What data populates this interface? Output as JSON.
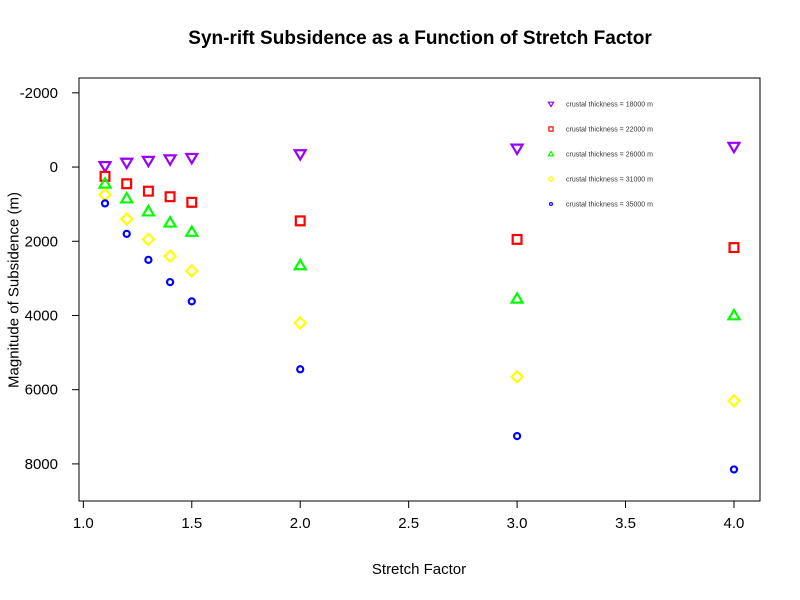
{
  "chart_data": {
    "type": "scatter",
    "title": "Syn-rift Subsidence as a Function of Stretch Factor",
    "xlabel": "Stretch Factor",
    "ylabel": "Magnitude of Subsidence (m)",
    "xlim": [
      0.98,
      4.12
    ],
    "ylim": [
      9000,
      -2400
    ],
    "y_reversed": true,
    "xticks": [
      1.0,
      1.5,
      2.0,
      2.5,
      3.0,
      3.5,
      4.0
    ],
    "xtick_labels": [
      "1.0",
      "1.5",
      "2.0",
      "2.5",
      "3.0",
      "3.5",
      "4.0"
    ],
    "yticks": [
      -2000,
      0,
      2000,
      4000,
      6000,
      8000
    ],
    "ytick_labels": [
      "-2000",
      "0",
      "2000",
      "4000",
      "6000",
      "8000"
    ],
    "grid": false,
    "legend_position": "top-right",
    "x": [
      1.1,
      1.2,
      1.3,
      1.4,
      1.5,
      2.0,
      3.0,
      4.0
    ],
    "series": [
      {
        "name": "crustal thickness = 18000 m",
        "marker": "triangle-down",
        "color": "#9900ff",
        "values": [
          -30,
          -120,
          -170,
          -210,
          -250,
          -350,
          -500,
          -550
        ]
      },
      {
        "name": "crustal thickness = 22000 m",
        "marker": "square",
        "color": "#ff0000",
        "values": [
          250,
          450,
          650,
          800,
          950,
          1450,
          1950,
          2170
        ]
      },
      {
        "name": "crustal thickness = 26000 m",
        "marker": "triangle-up",
        "color": "#00ff00",
        "values": [
          450,
          850,
          1200,
          1500,
          1750,
          2650,
          3550,
          4000
        ]
      },
      {
        "name": "crustal thickness = 31000 m",
        "marker": "diamond",
        "color": "#ffff00",
        "values": [
          750,
          1400,
          1950,
          2400,
          2800,
          4200,
          5650,
          6300
        ]
      },
      {
        "name": "crustal thickness = 35000 m",
        "marker": "circle",
        "color": "#0000ff",
        "values": [
          980,
          1800,
          2500,
          3100,
          3620,
          5450,
          7250,
          8150
        ]
      }
    ]
  }
}
